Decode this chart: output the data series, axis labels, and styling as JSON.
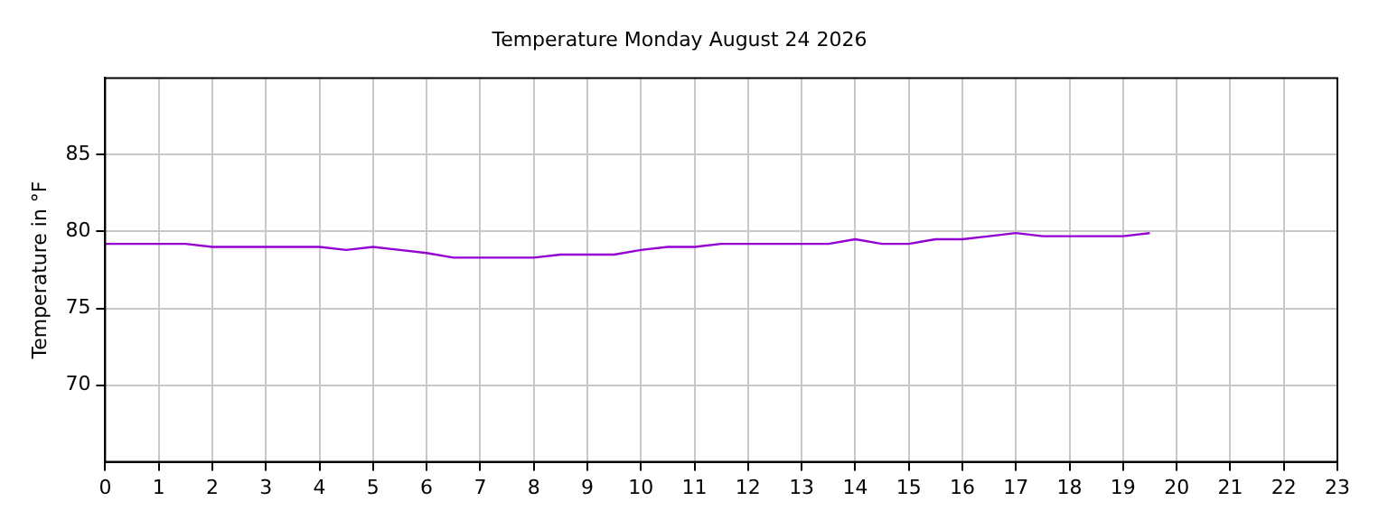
{
  "chart_data": {
    "type": "line",
    "title": "Temperature Monday August 24 2026",
    "ylabel": "Temperature in °F",
    "x": [
      0,
      0.5,
      1,
      1.5,
      2,
      2.5,
      3,
      3.5,
      4,
      4.5,
      5,
      5.5,
      6,
      6.5,
      7,
      7.5,
      8,
      8.5,
      9,
      9.5,
      10,
      10.5,
      11,
      11.5,
      12,
      12.5,
      13,
      13.5,
      14,
      14.5,
      15,
      15.5,
      16,
      16.5,
      17,
      17.5,
      18,
      18.5,
      19,
      19.5
    ],
    "series": [
      {
        "color": "#9400d3",
        "values": [
          79.2,
          79.2,
          79.2,
          79.2,
          79.0,
          79.0,
          79.0,
          79.0,
          79.0,
          78.8,
          79.0,
          78.8,
          78.6,
          78.3,
          78.3,
          78.3,
          78.3,
          78.5,
          78.5,
          78.5,
          78.8,
          79.0,
          79.0,
          79.2,
          79.2,
          79.2,
          79.2,
          79.2,
          79.5,
          79.2,
          79.2,
          79.5,
          79.5,
          79.7,
          79.9,
          79.7,
          79.7,
          79.7,
          79.7,
          79.9
        ]
      }
    ],
    "xlim": [
      0,
      23
    ],
    "xticks": [
      0,
      1,
      2,
      3,
      4,
      5,
      6,
      7,
      8,
      9,
      10,
      11,
      12,
      13,
      14,
      15,
      16,
      17,
      18,
      19,
      20,
      21,
      22,
      23
    ],
    "ylim": [
      65,
      90
    ],
    "yticks": [
      70,
      75,
      80,
      85
    ],
    "grid": true,
    "legend": false,
    "marker": "none",
    "line_style": "solid"
  }
}
